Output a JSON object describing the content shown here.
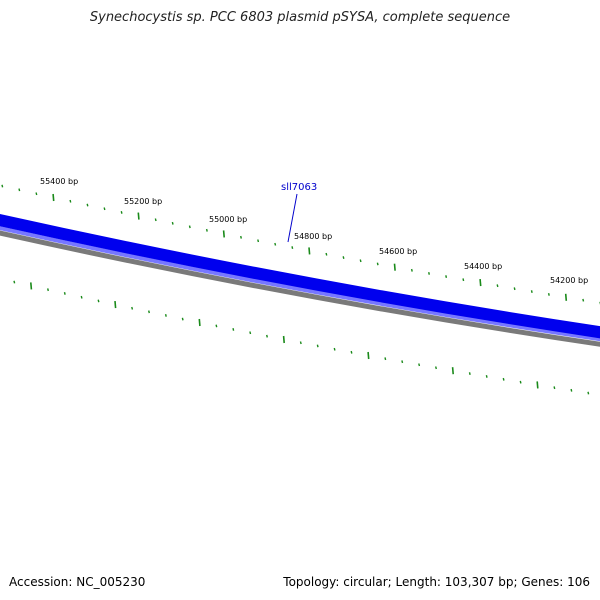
{
  "title": "Synechocystis sp. PCC 6803 plasmid pSYSA, complete sequence",
  "footer": {
    "accession": "Accession: NC_005230",
    "summary": "Topology: circular; Length: 103,307 bp; Genes: 106"
  },
  "scale_labels": [
    "55400 bp",
    "55200 bp",
    "55000 bp",
    "54800 bp",
    "54600 bp",
    "54400 bp",
    "54200 bp"
  ],
  "gene_label": "sll7063",
  "colors": {
    "gene_band": "#0000ee",
    "gene_band_light": "#7777ff",
    "backbone": "#7a7a7a",
    "ticks": "#1a8a1a",
    "gene_label": "#0000cc"
  }
}
